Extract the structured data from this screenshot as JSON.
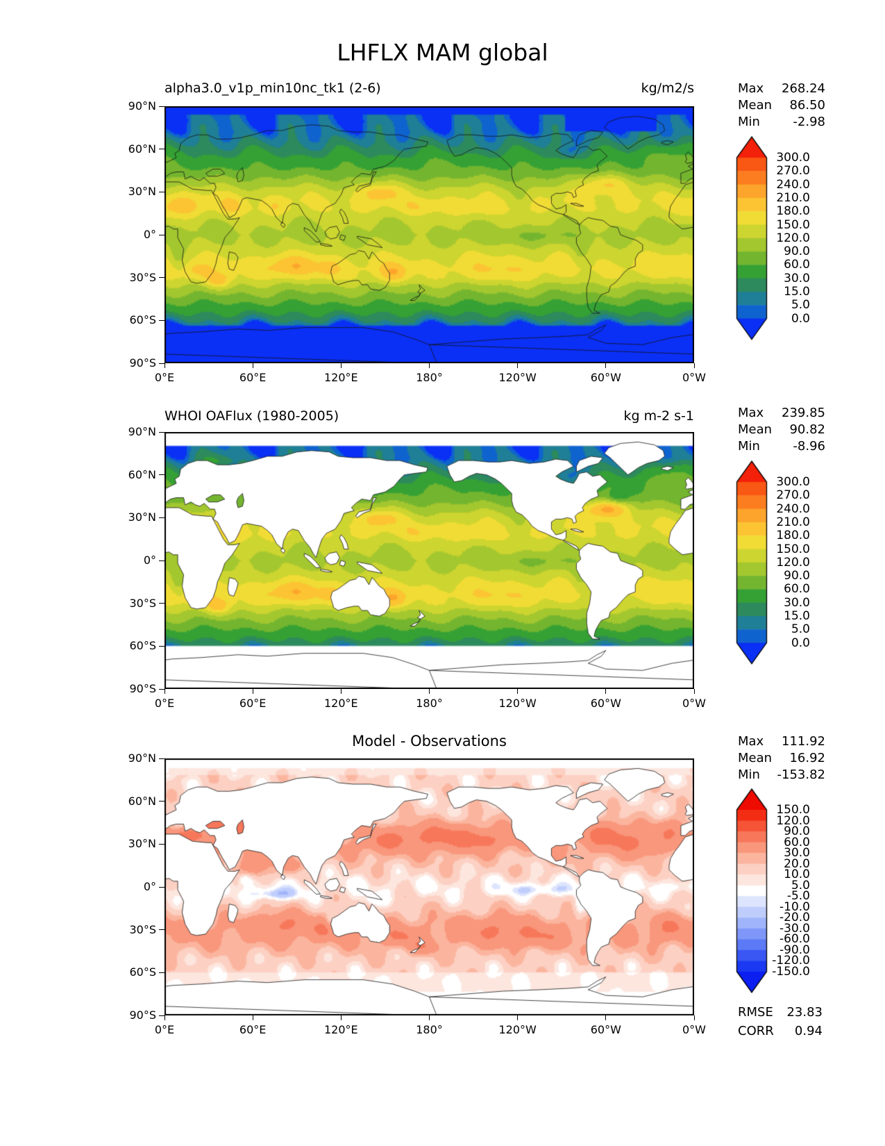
{
  "figure": {
    "title": "LHFLX MAM global",
    "background": "#ffffff"
  },
  "axes": {
    "x_tick_labels": [
      "0°E",
      "60°E",
      "120°E",
      "180°",
      "120°W",
      "60°W",
      "0°W"
    ],
    "y_tick_labels": [
      "90°N",
      "60°N",
      "30°N",
      "0°",
      "30°S",
      "60°S",
      "90°S"
    ]
  },
  "panels": [
    {
      "id": "model",
      "title": "alpha3.0_v1p_min10nc_tk1 (2-6)",
      "units": "kg/m2/s",
      "stats": [
        {
          "label": "Max",
          "value": "268.24"
        },
        {
          "label": "Mean",
          "value": "86.50"
        },
        {
          "label": "Min",
          "value": "-2.98"
        }
      ]
    },
    {
      "id": "observations",
      "title": "WHOI OAFlux (1980-2005)",
      "units": "kg m-2 s-1",
      "stats": [
        {
          "label": "Max",
          "value": "239.85"
        },
        {
          "label": "Mean",
          "value": "90.82"
        },
        {
          "label": "Min",
          "value": "-8.96"
        }
      ]
    },
    {
      "id": "difference",
      "title": "Model - Observations",
      "units": "",
      "stats": [
        {
          "label": "Max",
          "value": "111.92"
        },
        {
          "label": "Mean",
          "value": "16.92"
        },
        {
          "label": "Min",
          "value": "-153.82"
        }
      ],
      "metrics": [
        {
          "label": "RMSE",
          "value": "23.83"
        },
        {
          "label": "CORR",
          "value": "0.94"
        }
      ]
    }
  ],
  "colorbars": {
    "flux": {
      "tick_labels": [
        "300.0",
        "270.0",
        "240.0",
        "210.0",
        "180.0",
        "150.0",
        "120.0",
        "90.0",
        "60.0",
        "30.0",
        "15.0",
        "5.0",
        "0.0"
      ],
      "band_colors_top_to_bottom": [
        "#f95714",
        "#fb7d1f",
        "#fca42c",
        "#fcc433",
        "#f0dc35",
        "#cdd530",
        "#a3c72f",
        "#74b52f",
        "#35a134",
        "#2d8a5d",
        "#1f7f96",
        "#0f63cf"
      ],
      "over_color": "#f32109",
      "under_color": "#0a2ff5"
    },
    "diff": {
      "tick_labels": [
        "150.0",
        "120.0",
        "90.0",
        "60.0",
        "30.0",
        "20.0",
        "10.0",
        "5.0",
        "-5.0",
        "-10.0",
        "-20.0",
        "-30.0",
        "-60.0",
        "-90.0",
        "-120.0",
        "-150.0"
      ],
      "band_colors_top_to_bottom": [
        "#f32d14",
        "#f55437",
        "#f7775a",
        "#f9977c",
        "#fbb59f",
        "#fcd0c2",
        "#fde6de",
        "#ffffff",
        "#dde4fd",
        "#bfcdfc",
        "#9fb4fa",
        "#7e97f8",
        "#5c79f6",
        "#3a57f4",
        "#1b39f2"
      ],
      "over_color": "#ee0b00",
      "under_color": "#0a1ff0"
    }
  },
  "chart_data": [
    {
      "type": "heatmap",
      "panel": "model",
      "variable": "LHFLX",
      "season": "MAM",
      "region": "global",
      "title": "alpha3.0_v1p_min10nc_tk1 (2-6)",
      "units": "kg/m2/s",
      "stats": {
        "max": 268.24,
        "mean": 86.5,
        "min": -2.98
      },
      "colorbar_levels": [
        0.0,
        5.0,
        15.0,
        30.0,
        60.0,
        90.0,
        120.0,
        150.0,
        180.0,
        210.0,
        240.0,
        270.0,
        300.0
      ],
      "lon_range_deg_east": [
        0,
        360
      ],
      "lat_range": [
        -90,
        90
      ],
      "x_ticks": [
        "0°E",
        "60°E",
        "120°E",
        "180°",
        "120°W",
        "60°W",
        "0°W"
      ],
      "y_ticks": [
        "90°N",
        "60°N",
        "30°N",
        "0°",
        "30°S",
        "60°S",
        "90°S"
      ]
    },
    {
      "type": "heatmap",
      "panel": "observations",
      "title": "WHOI OAFlux (1980-2005)",
      "units": "kg m-2 s-1",
      "stats": {
        "max": 239.85,
        "mean": 90.82,
        "min": -8.96
      },
      "colorbar_levels": [
        0.0,
        5.0,
        15.0,
        30.0,
        60.0,
        90.0,
        120.0,
        150.0,
        180.0,
        210.0,
        240.0,
        270.0,
        300.0
      ],
      "land_masked": true
    },
    {
      "type": "heatmap",
      "panel": "difference",
      "title": "Model - Observations",
      "stats": {
        "max": 111.92,
        "mean": 16.92,
        "min": -153.82
      },
      "rmse": 23.83,
      "corr": 0.94,
      "colorbar_levels": [
        -150.0,
        -120.0,
        -90.0,
        -60.0,
        -30.0,
        -20.0,
        -10.0,
        -5.0,
        5.0,
        10.0,
        20.0,
        30.0,
        60.0,
        90.0,
        120.0,
        150.0
      ],
      "land_masked": true
    }
  ]
}
